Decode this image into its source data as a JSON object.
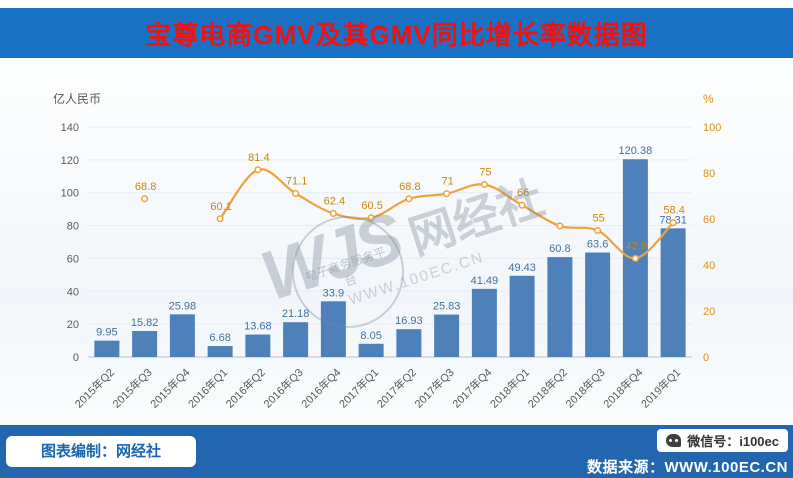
{
  "header": {
    "title": "宝尊电商GMV及其GMV同比增长率数据图"
  },
  "chart_data": {
    "type": "combo-bar-line",
    "title": "宝尊电商GMV及其GMV同比增长率数据图",
    "categories": [
      "2015年Q2",
      "2015年Q3",
      "2015年Q4",
      "2016年Q1",
      "2016年Q2",
      "2016年Q3",
      "2016年Q4",
      "2017年Q1",
      "2017年Q2",
      "2017年Q3",
      "2017年Q4",
      "2018年Q1",
      "2018年Q2",
      "2018年Q3",
      "2018年Q4",
      "2019年Q1"
    ],
    "series": [
      {
        "name": "GMV",
        "type": "bar",
        "axis": "left",
        "unit": "亿人民币",
        "values": [
          9.95,
          15.82,
          25.98,
          6.68,
          13.68,
          21.18,
          33.9,
          8.05,
          16.93,
          25.83,
          41.49,
          49.43,
          60.8,
          63.6,
          120.38,
          78.31
        ]
      },
      {
        "name": "GMV同比增长率",
        "type": "line",
        "axis": "right",
        "unit": "%",
        "values": [
          null,
          68.8,
          null,
          60.1,
          81.4,
          71.1,
          62.4,
          60.5,
          68.8,
          71,
          75,
          66,
          57,
          55,
          42.9,
          58.4
        ],
        "labels": [
          "",
          "68.8",
          "",
          "60.1",
          "81.4",
          "71.1",
          "62.4",
          "60.5",
          "68.8",
          "71",
          "75",
          "66",
          "",
          "55",
          "42.9",
          "58.4"
        ]
      }
    ],
    "y_left": {
      "title": "亿人民币",
      "min": 0,
      "max": 140,
      "step": 20
    },
    "y_right": {
      "title": "%",
      "min": 0,
      "max": 100,
      "step": 20
    },
    "legend": "none",
    "grid": "faint-horizontal"
  },
  "watermark": {
    "logo": "WJS",
    "name": "网经社",
    "url": "WWW.100EC.CN",
    "seal_text": "电子商务服务平台"
  },
  "footer": {
    "credit": "图表编制：网经社",
    "wechat": "微信号：i100ec",
    "source": "数据来源：WWW.100EC.CN"
  },
  "colors": {
    "header_bg": "#1a70c2",
    "title": "#f50f0f",
    "bar": "#4e81ba",
    "bar_label": "#41719c",
    "line": "#efa23b",
    "line_label": "#c9880c",
    "axis_text": "#595959",
    "right_axis_text": "#e2900e",
    "footer_bg": "#2166ae",
    "credit_text": "#1a66b0"
  }
}
